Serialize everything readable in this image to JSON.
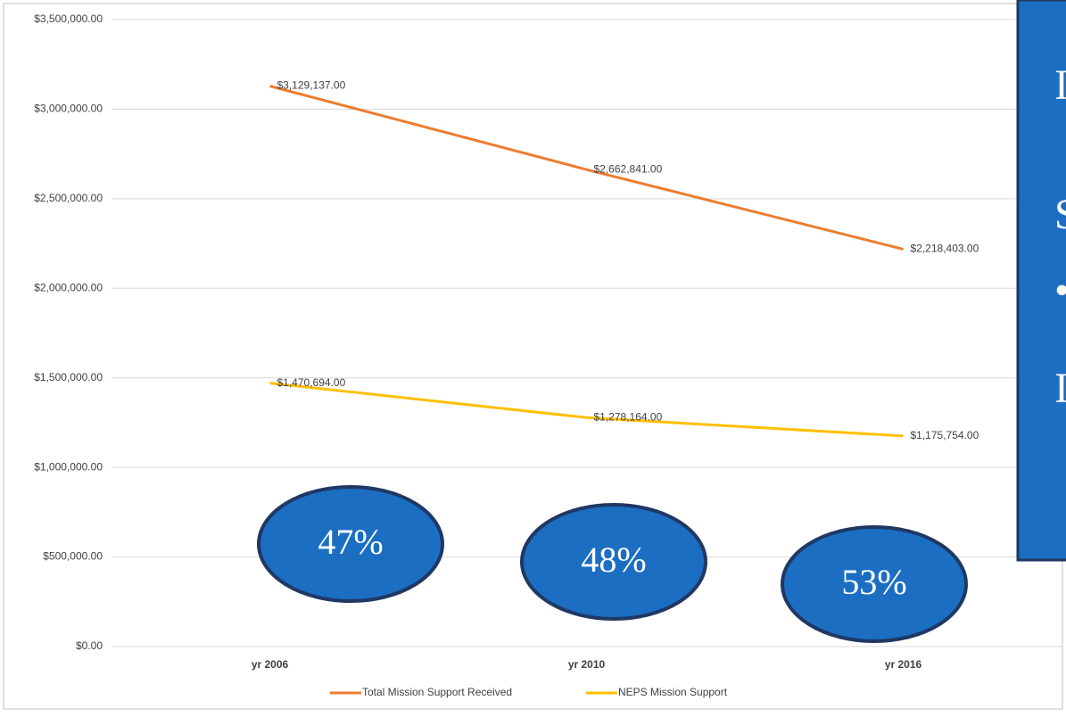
{
  "chart_data": {
    "type": "line",
    "categories": [
      "yr 2006",
      "yr 2010",
      "yr 2016"
    ],
    "series": [
      {
        "name": "Total Mission Support Received",
        "color": "#ed7d31",
        "values": [
          3129137,
          2662841,
          2218403
        ],
        "value_labels": [
          "$3,129,137.00",
          "$2,662,841.00",
          "$2,218,403.00"
        ]
      },
      {
        "name": "NEPS Mission Support",
        "color": "#ffc000",
        "values": [
          1470694,
          1278164,
          1175754
        ],
        "value_labels": [
          "$1,470,694.00",
          "$1,278,164.00",
          "$1,175,754.00"
        ]
      }
    ],
    "ylim": [
      0,
      3500000
    ],
    "yticks": [
      {
        "value": 0,
        "label": "$0.00"
      },
      {
        "value": 500000,
        "label": "$500,000.00"
      },
      {
        "value": 1000000,
        "label": "$1,000,000.00"
      },
      {
        "value": 1500000,
        "label": "$1,500,000.00"
      },
      {
        "value": 2000000,
        "label": "$2,000,000.00"
      },
      {
        "value": 2500000,
        "label": "$2,500,000.00"
      },
      {
        "value": 3000000,
        "label": "$3,000,000.00"
      },
      {
        "value": 3500000,
        "label": "$3,500,000.00"
      }
    ],
    "grid": true,
    "legend": "bottom",
    "annotations": [
      "47%",
      "48%",
      "53%"
    ],
    "callout_lines": [
      "I",
      "S",
      "•",
      "I"
    ]
  }
}
